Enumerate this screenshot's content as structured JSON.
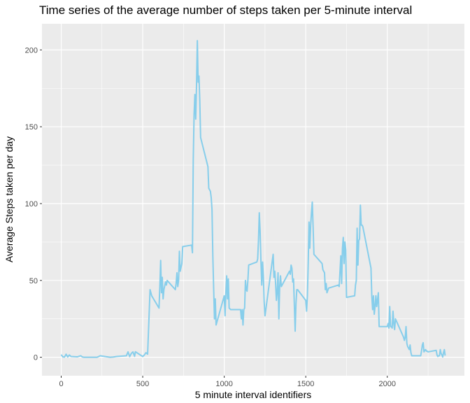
{
  "chart_data": {
    "type": "line",
    "title": "Time series of the average number of steps taken per 5-minute interval",
    "xlabel": "5 minute interval identifiers",
    "ylabel": "Average Steps taken per day",
    "xlim": [
      -118,
      2473
    ],
    "ylim": [
      -12,
      217
    ],
    "x_ticks": [
      0,
      500,
      1000,
      1500,
      2000
    ],
    "y_ticks": [
      0,
      50,
      100,
      150,
      200
    ],
    "grid": true,
    "background": "#ebebeb",
    "grid_color": "#ffffff",
    "line_color": "#87ceeb",
    "series": [
      {
        "x": [
          0,
          10,
          20,
          30,
          40,
          50,
          60,
          100,
          120,
          130,
          140,
          200,
          220,
          240,
          250,
          300,
          320,
          340,
          400,
          410,
          420,
          430,
          440,
          450,
          455,
          500,
          510,
          520,
          530,
          545,
          555,
          600,
          605,
          610,
          615,
          620,
          625,
          630,
          640,
          645,
          650,
          700,
          705,
          710,
          715,
          720,
          725,
          730,
          740,
          745,
          800,
          805,
          810,
          815,
          820,
          825,
          830,
          835,
          840,
          845,
          850,
          855,
          900,
          905,
          910,
          915,
          920,
          925,
          930,
          935,
          940,
          945,
          950,
          1000,
          1005,
          1010,
          1015,
          1020,
          1025,
          1030,
          1040,
          1100,
          1105,
          1110,
          1115,
          1120,
          1125,
          1130,
          1135,
          1140,
          1145,
          1150,
          1200,
          1205,
          1210,
          1215,
          1220,
          1225,
          1230,
          1235,
          1240,
          1245,
          1250,
          1300,
          1305,
          1310,
          1315,
          1320,
          1325,
          1330,
          1335,
          1340,
          1345,
          1350,
          1400,
          1405,
          1410,
          1415,
          1420,
          1425,
          1430,
          1435,
          1440,
          1445,
          1450,
          1500,
          1505,
          1510,
          1515,
          1520,
          1525,
          1530,
          1535,
          1540,
          1545,
          1550,
          1600,
          1605,
          1610,
          1615,
          1620,
          1625,
          1630,
          1640,
          1700,
          1705,
          1710,
          1715,
          1720,
          1725,
          1730,
          1735,
          1740,
          1745,
          1750,
          1800,
          1805,
          1810,
          1815,
          1820,
          1825,
          1830,
          1835,
          1840,
          1845,
          1850,
          1900,
          1905,
          1910,
          1915,
          1920,
          1925,
          1930,
          1935,
          1940,
          1945,
          1950,
          2000,
          2005,
          2010,
          2015,
          2020,
          2025,
          2030,
          2035,
          2040,
          2045,
          2050,
          2100,
          2105,
          2110,
          2115,
          2120,
          2125,
          2130,
          2135,
          2140,
          2145,
          2150,
          2200,
          2205,
          2210,
          2215,
          2220,
          2225,
          2230,
          2235,
          2240,
          2245,
          2250,
          2300,
          2305,
          2310,
          2315,
          2320,
          2325,
          2330,
          2335,
          2340,
          2345,
          2350,
          2355
        ],
        "y": [
          1.7,
          0.3,
          0.1,
          2.0,
          0.2,
          1.5,
          0.5,
          0.3,
          1.0,
          0.2,
          0.0,
          0.0,
          0.0,
          1.0,
          0.8,
          0.0,
          0.2,
          0.5,
          1.0,
          3.5,
          0.4,
          2.5,
          3.5,
          0.6,
          3.6,
          0.5,
          1.5,
          3.0,
          2.0,
          44.0,
          40.0,
          32.0,
          46.0,
          63.0,
          42.0,
          52.0,
          38.0,
          44.0,
          49.0,
          47.0,
          50.0,
          44.0,
          48.0,
          55.0,
          46.0,
          50.0,
          69.0,
          56.0,
          61.0,
          72.0,
          73.0,
          68.0,
          129.0,
          158.0,
          171.0,
          155.0,
          177.0,
          206.0,
          179.0,
          183.0,
          167.0,
          143.0,
          124.0,
          110.0,
          109.0,
          108.0,
          104.0,
          96.0,
          66.0,
          45.0,
          25.0,
          38.0,
          21.0,
          40.0,
          27.0,
          42.0,
          53.0,
          38.0,
          51.0,
          32.0,
          31.0,
          31.0,
          25.0,
          31.0,
          21.0,
          31.0,
          32.0,
          50.0,
          44.0,
          43.0,
          50.0,
          60.0,
          62.0,
          64.0,
          76.0,
          94.0,
          82.0,
          63.0,
          47.0,
          62.0,
          52.0,
          36.0,
          27.0,
          67.0,
          52.0,
          56.0,
          48.0,
          37.0,
          43.0,
          55.0,
          25.0,
          46.0,
          53.0,
          46.0,
          56.0,
          54.0,
          60.0,
          58.0,
          49.0,
          51.0,
          34.0,
          17.0,
          35.0,
          44.0,
          44.0,
          37.0,
          30.0,
          40.0,
          61.0,
          88.0,
          71.0,
          86.0,
          94.0,
          101.0,
          85.0,
          67.0,
          61.0,
          57.0,
          56.0,
          55.0,
          44.0,
          48.0,
          42.0,
          45.0,
          47.0,
          46.0,
          56.0,
          66.0,
          48.0,
          71.0,
          78.0,
          61.0,
          75.0,
          70.0,
          39.0,
          40.0,
          47.0,
          50.0,
          84.0,
          60.0,
          76.0,
          77.0,
          99.0,
          86.0,
          86.0,
          85.0,
          58.0,
          40.0,
          31.0,
          40.0,
          28.0,
          33.0,
          40.0,
          33.0,
          37.0,
          42.0,
          20.0,
          20.0,
          22.0,
          19.0,
          33.0,
          20.0,
          20.0,
          19.0,
          30.0,
          22.0,
          18.0,
          25.0,
          13.0,
          11.0,
          13.0,
          20.0,
          9.0,
          7.0,
          6.0,
          5.0,
          8.0,
          3.0,
          1.0,
          1.0,
          1.0,
          4.0,
          8.0,
          9.5,
          3.5,
          4.5,
          5.0,
          4.0,
          4.0,
          3.5,
          4.5,
          1.5,
          0.5,
          1.0,
          1.0,
          5.0,
          2.5,
          1.5,
          0.2,
          3.0,
          5.0,
          1.1
        ]
      }
    ]
  }
}
